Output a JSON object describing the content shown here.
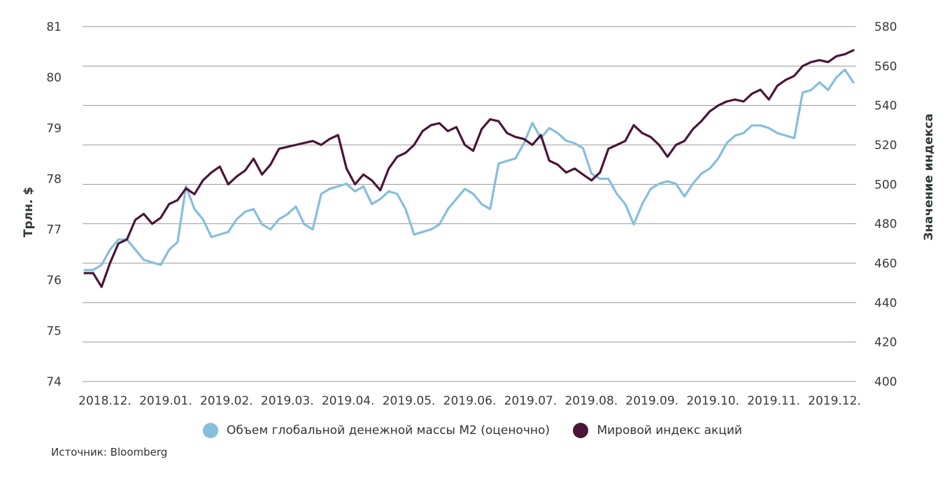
{
  "chart_data": {
    "type": "line",
    "left_axis": {
      "title": "Трлн. $",
      "ylim": [
        74,
        81
      ],
      "ticks": [
        "74",
        "75",
        "76",
        "77",
        "78",
        "79",
        "80",
        "81"
      ]
    },
    "right_axis": {
      "title": "Значение индекса",
      "ylim": [
        400,
        580
      ],
      "ticks": [
        "400",
        "420",
        "440",
        "460",
        "480",
        "500",
        "520",
        "540",
        "560",
        "580"
      ]
    },
    "x_labels": [
      "2018.12.",
      "2019.01.",
      "2019.02.",
      "2019.03.",
      "2019.04.",
      "2019.05.",
      "2019.06.",
      "2019.07.",
      "2019.08.",
      "2019.09.",
      "2019.10.",
      "2019.11.",
      "2019.12."
    ],
    "grid": true,
    "legend_position": "bottom",
    "series": [
      {
        "name": "Объем глобальной денежной массы M2 (оценочно)",
        "axis": "left",
        "color": "#86bedc",
        "x": [
          0,
          0.08,
          0.12,
          0.2,
          0.3,
          0.45,
          0.55,
          0.65,
          0.72,
          0.78,
          0.85,
          0.92,
          1.0,
          1.1,
          1.25,
          1.4,
          1.5,
          1.65,
          1.8,
          1.95,
          2.05,
          2.2,
          2.3,
          2.45,
          2.6,
          2.75,
          2.95,
          3.1,
          3.3,
          3.45,
          3.55,
          3.7,
          3.85,
          4.0,
          4.15,
          4.3,
          4.45,
          4.6,
          4.75,
          4.9,
          5.05,
          5.15,
          5.3,
          5.45,
          5.6,
          5.75,
          5.85,
          6.0,
          6.1,
          6.25,
          6.35,
          6.5,
          6.65,
          6.75,
          6.9,
          7.0,
          7.15,
          7.3,
          7.45,
          7.6,
          7.75,
          7.85,
          8.0,
          8.15,
          8.3,
          8.45,
          8.6,
          8.75,
          8.9,
          9.05,
          9.2,
          9.35,
          9.5,
          9.65,
          9.8,
          9.95,
          10.1,
          10.25,
          10.4,
          10.55,
          10.7,
          10.85,
          11.0,
          11.15,
          11.3,
          11.45,
          11.6,
          11.75,
          11.9,
          12.05,
          12.2,
          12.35
        ],
        "values": [
          76.2,
          76.2,
          76.3,
          76.6,
          76.8,
          76.8,
          76.6,
          76.4,
          76.35,
          76.3,
          76.6,
          76.75,
          77.85,
          77.4,
          77.2,
          76.85,
          76.9,
          76.95,
          77.2,
          77.35,
          77.4,
          77.1,
          77.0,
          77.2,
          77.3,
          77.45,
          77.1,
          77.0,
          77.7,
          77.8,
          77.85,
          77.9,
          77.75,
          77.85,
          77.5,
          77.6,
          77.75,
          77.7,
          77.4,
          76.9,
          76.95,
          77.0,
          77.1,
          77.4,
          77.6,
          77.8,
          77.7,
          77.5,
          77.4,
          78.3,
          78.35,
          78.4,
          78.7,
          79.1,
          78.8,
          79.0,
          78.9,
          78.75,
          78.7,
          78.6,
          78.1,
          78.0,
          78.0,
          77.7,
          77.5,
          77.1,
          77.5,
          77.8,
          77.9,
          77.95,
          77.9,
          77.65,
          77.9,
          78.1,
          78.2,
          78.4,
          78.7,
          78.85,
          78.9,
          79.05,
          79.05,
          79.0,
          78.9,
          78.85,
          78.8,
          79.7,
          79.75,
          79.9,
          79.75,
          80.0,
          80.15,
          79.9
        ],
        "x_dummy": null
      },
      {
        "name": "Мировой индекс акций",
        "axis": "right",
        "color": "#4a1538",
        "values": [
          455,
          455,
          448,
          460,
          470,
          472,
          482,
          485,
          480,
          483,
          490,
          492,
          498,
          495,
          502,
          506,
          509,
          500,
          504,
          507,
          513,
          505,
          510,
          518,
          519,
          520,
          521,
          522,
          520,
          523,
          525,
          508,
          500,
          505,
          502,
          497,
          508,
          514,
          516,
          520,
          527,
          530,
          531,
          527,
          529,
          520,
          517,
          528,
          533,
          532,
          526,
          524,
          523,
          520,
          525,
          512,
          510,
          506,
          508,
          505,
          502,
          506,
          518,
          520,
          522,
          530,
          526,
          524,
          520,
          514,
          520,
          522,
          528,
          532,
          537,
          540,
          542,
          543,
          542,
          546,
          548,
          543,
          550,
          553,
          555,
          560,
          562,
          563,
          562,
          565,
          566,
          568
        ]
      }
    ]
  },
  "legend": {
    "m2_label": "Объем глобальной денежной массы M2 (оценочно)",
    "index_label": "Мировой индекс акций"
  },
  "source": "Источник: Bloomberg"
}
